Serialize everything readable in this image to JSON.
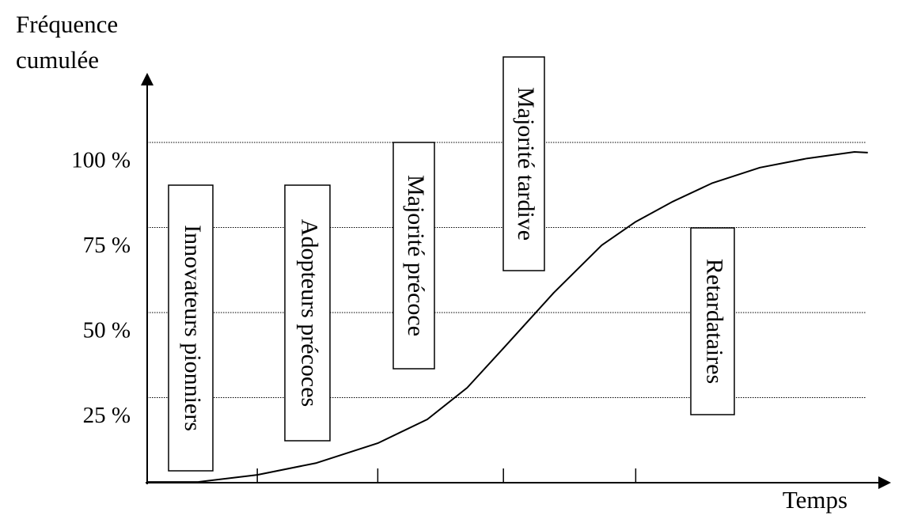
{
  "chart_data": {
    "type": "line",
    "y_label": "Fréquence cumulée",
    "x_label": "Temps",
    "x": [
      0,
      6.9,
      14.9,
      22.9,
      31.2,
      37.9,
      43.3,
      48.2,
      55.0,
      61.5,
      66.1,
      71.1,
      76.4,
      82.9,
      89.3,
      95.7,
      97.5
    ],
    "values": [
      0.2,
      0.2,
      2.3,
      5.8,
      11.6,
      18.6,
      27.9,
      39.5,
      55.8,
      69.8,
      76.7,
      82.6,
      88.0,
      92.6,
      95.3,
      97.2,
      97.0
    ],
    "color": "#000000",
    "xlim": [
      0,
      100
    ],
    "ylim": [
      0,
      120
    ],
    "xticks": [
      14.9,
      31.2,
      48.2,
      66.1
    ],
    "yticks": [
      {
        "value": 25,
        "label": "25 %"
      },
      {
        "value": 50,
        "label": "50 %"
      },
      {
        "value": 75,
        "label": "75 %"
      },
      {
        "value": 100,
        "label": "100 %"
      }
    ],
    "grid": true,
    "annotations": [
      "Innovateurs pionniers",
      "Adopteurs précoces",
      "Majorité précoce",
      "Majorité tardive",
      "Retardataires"
    ]
  }
}
